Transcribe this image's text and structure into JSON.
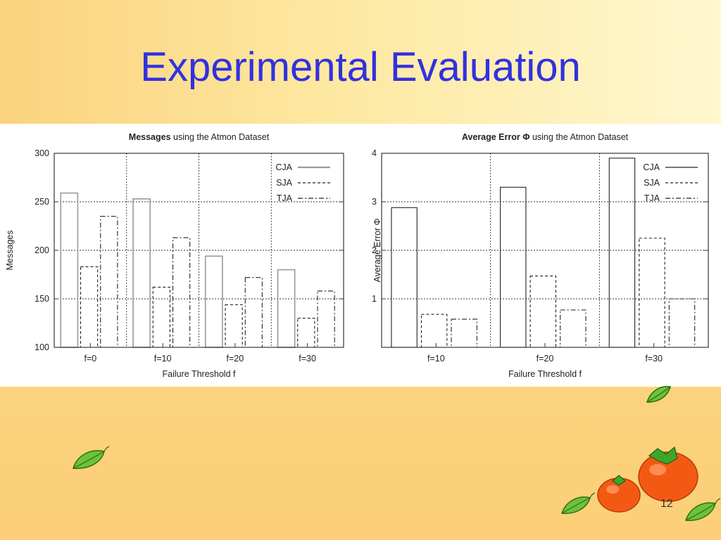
{
  "slide": {
    "title": "Experimental Evaluation",
    "page_number": "12"
  },
  "colors": {
    "title": "#3131e0",
    "background_left": "#fbd27e",
    "background_right": "#fff7cf",
    "fruit": "#f25a14",
    "leaf": "#58b82a"
  },
  "icons": [
    "leaf-icon",
    "persimmon-icon"
  ],
  "chart_data": [
    {
      "type": "bar",
      "title_bold": "Messages",
      "title_rest": " using the Atmon Dataset",
      "xlabel": "Failure Threshold f",
      "ylabel": "Messages",
      "ylim": [
        100,
        300
      ],
      "yticks": [
        "100",
        "150",
        "200",
        "250",
        "300"
      ],
      "categories": [
        "f=0",
        "f=10",
        "f=20",
        "f=30"
      ],
      "grid": true,
      "legend_position": "top-right",
      "series": [
        {
          "name": "CJA",
          "style": "solid-gray",
          "values": [
            259,
            253,
            194,
            180
          ]
        },
        {
          "name": "SJA",
          "style": "dashed",
          "values": [
            183,
            162,
            144,
            130
          ]
        },
        {
          "name": "TJA",
          "style": "dash-dot",
          "values": [
            235,
            213,
            172,
            158
          ]
        }
      ]
    },
    {
      "type": "bar",
      "title_bold": "Average Error Φ",
      "title_rest": " using the Atmon Dataset",
      "xlabel": "Failure Threshold f",
      "ylabel": "Average Error Φ",
      "ylim": [
        0,
        4
      ],
      "yticks": [
        "1",
        "2",
        "3",
        "4"
      ],
      "categories": [
        "f=10",
        "f=20",
        "f=30"
      ],
      "grid": true,
      "legend_position": "top-right",
      "series": [
        {
          "name": "CJA",
          "style": "solid",
          "values": [
            2.88,
            3.3,
            3.9
          ]
        },
        {
          "name": "SJA",
          "style": "dashed",
          "values": [
            0.68,
            1.47,
            2.25
          ]
        },
        {
          "name": "TJA",
          "style": "dash-dot",
          "values": [
            0.58,
            0.77,
            1.0
          ]
        }
      ]
    }
  ]
}
